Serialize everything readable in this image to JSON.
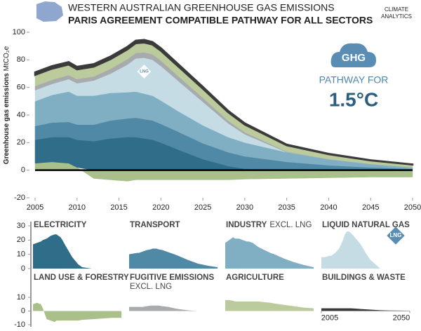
{
  "logo": [
    "CLIMATE",
    "ANALYTICS"
  ],
  "chart_data": {
    "type": "stacked-area",
    "title": "WESTERN AUSTRALIAN GREENHOUSE GAS EMISSIONS",
    "subtitle": "PARIS AGREEMENT COMPATIBLE PATHWAY FOR ALL SECTORS",
    "ylabel": "Greenhouse gas emissions",
    "ylabel_unit": "MtCO₂e",
    "annotation": {
      "badge": "GHG",
      "line1": "PATHWAY FOR",
      "line2": "1.5°C"
    },
    "x": [
      2005,
      2007,
      2009,
      2010,
      2012,
      2014,
      2016,
      2017,
      2018,
      2019,
      2020,
      2022,
      2025,
      2028,
      2030,
      2035,
      2040,
      2045,
      2050
    ],
    "xlim": [
      2005,
      2050
    ],
    "xticks": [
      2005,
      2010,
      2015,
      2020,
      2025,
      2030,
      2035,
      2040,
      2045,
      2050
    ],
    "ylim": [
      -20,
      100
    ],
    "yticks": [
      -20,
      0,
      20,
      40,
      60,
      80,
      100
    ],
    "series": [
      {
        "name": "LAND USE & FORESTRY",
        "color": "#a9c08a",
        "values": [
          5,
          6,
          5,
          2,
          -6,
          -7,
          -8,
          -7,
          -7,
          -7,
          -7,
          -7,
          -7,
          -7,
          -6.5,
          -6,
          -5.5,
          -5,
          -5
        ]
      },
      {
        "name": "ELECTRICITY",
        "color": "#2f6d88",
        "values": [
          17,
          18,
          19,
          20,
          21,
          23,
          24,
          24,
          23,
          22,
          20,
          15,
          8,
          3,
          1,
          0,
          0,
          0,
          0
        ]
      },
      {
        "name": "TRANSPORT",
        "color": "#5089a5",
        "values": [
          10,
          10.5,
          11,
          11,
          12,
          13,
          13.5,
          14,
          14,
          14,
          13.5,
          13,
          11.5,
          10,
          9,
          6,
          3.5,
          2,
          1
        ]
      },
      {
        "name": "INDUSTRY",
        "name_suffix": "EXCL. LNG",
        "color": "#80afc4",
        "values": [
          18,
          20,
          22,
          21,
          21,
          20,
          19,
          19,
          18.5,
          18,
          17,
          15,
          13,
          11,
          10,
          7,
          4.5,
          2.5,
          1
        ]
      },
      {
        "name": "LIQUID NATURAL GAS",
        "icon_text": "LNG",
        "color": "#c6dce5",
        "values": [
          8,
          8,
          9,
          9,
          11,
          14,
          20,
          24,
          26,
          26,
          25,
          22,
          17,
          10,
          6,
          0,
          0,
          0,
          0
        ]
      },
      {
        "name": "FUGITIVE EMISSIONS",
        "name_suffix": "EXCL. LNG",
        "color": "#a8abae",
        "values": [
          3,
          3,
          3,
          3,
          3,
          3.5,
          4,
          4,
          4,
          4,
          4,
          3.5,
          3,
          2,
          1.5,
          0.5,
          0,
          0,
          0
        ]
      },
      {
        "name": "AGRICULTURE",
        "color": "#bccb9c",
        "values": [
          8,
          8,
          7.5,
          7,
          7,
          7,
          7,
          7,
          7,
          7,
          7,
          7,
          6.5,
          6,
          5.5,
          4.5,
          3.5,
          2.5,
          2
        ]
      },
      {
        "name": "BUILDINGS & WASTE",
        "color": "#3b3b3b",
        "values": [
          2,
          2,
          2,
          2,
          2,
          2,
          2,
          2,
          2,
          2,
          2,
          1.8,
          1.5,
          1.2,
          1,
          0.6,
          0.4,
          0.3,
          0.2
        ]
      }
    ],
    "panels": {
      "rows": [
        {
          "ylim": [
            0,
            30
          ],
          "yticks": [
            0,
            10,
            20,
            30
          ]
        },
        {
          "ylim": [
            -10,
            10
          ],
          "yticks": [
            -10,
            0,
            10
          ]
        }
      ],
      "xticks": [
        2005,
        2050
      ]
    }
  }
}
